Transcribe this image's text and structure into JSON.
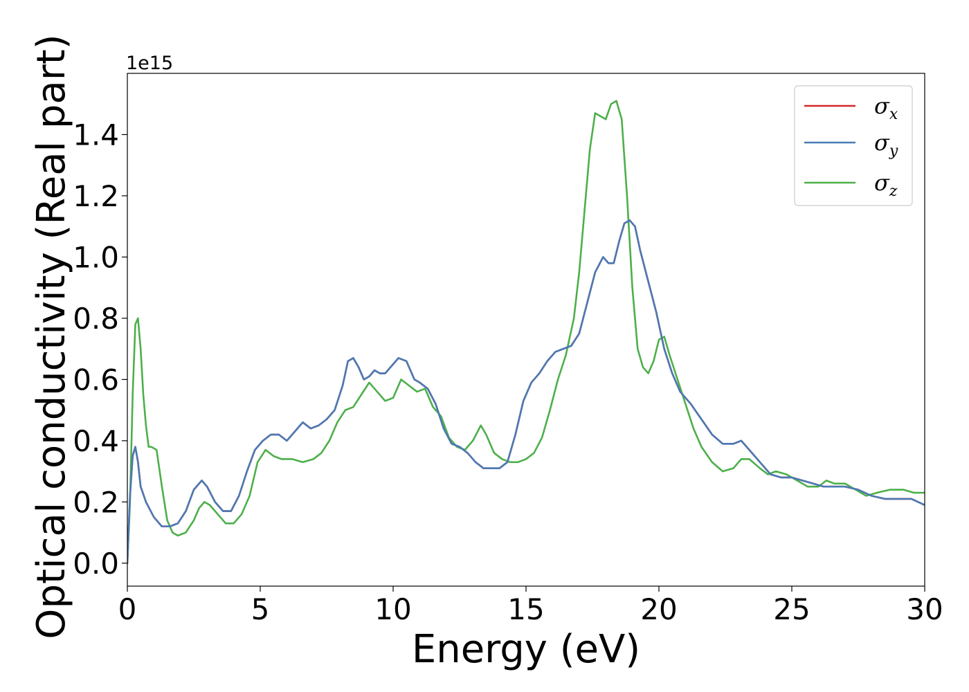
{
  "chart_data": {
    "type": "line",
    "title": "",
    "xlabel": "Energy (eV)",
    "ylabel": "Optical conductivity (Real part)",
    "y_offset_label": "1e15",
    "xlim": [
      0,
      30
    ],
    "ylim": [
      -0.075,
      1.6
    ],
    "xticks": [
      0,
      5,
      10,
      15,
      20,
      25,
      30
    ],
    "xtick_labels": [
      "0",
      "5",
      "10",
      "15",
      "20",
      "25",
      "30"
    ],
    "yticks": [
      0.0,
      0.2,
      0.4,
      0.6,
      0.8,
      1.0,
      1.2,
      1.4
    ],
    "ytick_labels": [
      "0.0",
      "0.2",
      "0.4",
      "0.6",
      "0.8",
      "1.0",
      "1.2",
      "1.4"
    ],
    "grid": false,
    "legend_position": "top-right",
    "series": [
      {
        "name": "σx",
        "sym": "σ",
        "sub": "x",
        "color": "#d62728",
        "x": [
          0,
          0.1,
          0.2,
          0.3,
          0.4,
          0.5,
          0.7,
          1.0,
          1.3,
          1.6,
          1.9,
          2.2,
          2.5,
          2.8,
          3.0,
          3.3,
          3.6,
          3.9,
          4.2,
          4.5,
          4.8,
          5.1,
          5.4,
          5.7,
          6.0,
          6.3,
          6.6,
          6.9,
          7.2,
          7.5,
          7.8,
          8.1,
          8.3,
          8.5,
          8.7,
          8.9,
          9.1,
          9.3,
          9.5,
          9.7,
          10.0,
          10.2,
          10.5,
          10.8,
          11.0,
          11.3,
          11.6,
          11.9,
          12.2,
          12.5,
          12.8,
          13.1,
          13.4,
          13.7,
          14.0,
          14.3,
          14.6,
          14.9,
          15.2,
          15.5,
          15.8,
          16.1,
          16.4,
          16.7,
          17.0,
          17.3,
          17.6,
          17.9,
          18.1,
          18.3,
          18.5,
          18.7,
          18.9,
          19.1,
          19.3,
          19.6,
          19.9,
          20.2,
          20.5,
          20.8,
          21.2,
          21.6,
          22.0,
          22.4,
          22.8,
          23.1,
          23.4,
          23.8,
          24.2,
          24.6,
          25.0,
          25.4,
          25.8,
          26.2,
          26.6,
          27.0,
          27.5,
          28.0,
          28.5,
          29.0,
          29.5,
          30.0
        ],
        "y": [
          0.0,
          0.22,
          0.35,
          0.38,
          0.33,
          0.25,
          0.2,
          0.15,
          0.12,
          0.12,
          0.13,
          0.17,
          0.24,
          0.27,
          0.25,
          0.2,
          0.17,
          0.17,
          0.22,
          0.3,
          0.37,
          0.4,
          0.42,
          0.42,
          0.4,
          0.43,
          0.46,
          0.44,
          0.45,
          0.47,
          0.5,
          0.58,
          0.66,
          0.67,
          0.64,
          0.6,
          0.61,
          0.63,
          0.62,
          0.62,
          0.65,
          0.67,
          0.66,
          0.6,
          0.59,
          0.57,
          0.52,
          0.44,
          0.39,
          0.38,
          0.36,
          0.33,
          0.31,
          0.31,
          0.31,
          0.33,
          0.42,
          0.53,
          0.59,
          0.62,
          0.66,
          0.69,
          0.7,
          0.71,
          0.75,
          0.85,
          0.95,
          1.0,
          0.98,
          0.98,
          1.05,
          1.11,
          1.12,
          1.1,
          1.02,
          0.92,
          0.82,
          0.7,
          0.62,
          0.56,
          0.52,
          0.47,
          0.42,
          0.39,
          0.39,
          0.4,
          0.37,
          0.33,
          0.29,
          0.28,
          0.28,
          0.27,
          0.26,
          0.25,
          0.25,
          0.25,
          0.24,
          0.22,
          0.21,
          0.21,
          0.21,
          0.19
        ]
      },
      {
        "name": "σy",
        "sym": "σ",
        "sub": "y",
        "color": "#4a7ab5",
        "x": [
          0,
          0.1,
          0.2,
          0.3,
          0.4,
          0.5,
          0.7,
          1.0,
          1.3,
          1.6,
          1.9,
          2.2,
          2.5,
          2.8,
          3.0,
          3.3,
          3.6,
          3.9,
          4.2,
          4.5,
          4.8,
          5.1,
          5.4,
          5.7,
          6.0,
          6.3,
          6.6,
          6.9,
          7.2,
          7.5,
          7.8,
          8.1,
          8.3,
          8.5,
          8.7,
          8.9,
          9.1,
          9.3,
          9.5,
          9.7,
          10.0,
          10.2,
          10.5,
          10.8,
          11.0,
          11.3,
          11.6,
          11.9,
          12.2,
          12.5,
          12.8,
          13.1,
          13.4,
          13.7,
          14.0,
          14.3,
          14.6,
          14.9,
          15.2,
          15.5,
          15.8,
          16.1,
          16.4,
          16.7,
          17.0,
          17.3,
          17.6,
          17.9,
          18.1,
          18.3,
          18.5,
          18.7,
          18.9,
          19.1,
          19.3,
          19.6,
          19.9,
          20.2,
          20.5,
          20.8,
          21.2,
          21.6,
          22.0,
          22.4,
          22.8,
          23.1,
          23.4,
          23.8,
          24.2,
          24.6,
          25.0,
          25.4,
          25.8,
          26.2,
          26.6,
          27.0,
          27.5,
          28.0,
          28.5,
          29.0,
          29.5,
          30.0
        ],
        "y": [
          0.0,
          0.22,
          0.35,
          0.38,
          0.33,
          0.25,
          0.2,
          0.15,
          0.12,
          0.12,
          0.13,
          0.17,
          0.24,
          0.27,
          0.25,
          0.2,
          0.17,
          0.17,
          0.22,
          0.3,
          0.37,
          0.4,
          0.42,
          0.42,
          0.4,
          0.43,
          0.46,
          0.44,
          0.45,
          0.47,
          0.5,
          0.58,
          0.66,
          0.67,
          0.64,
          0.6,
          0.61,
          0.63,
          0.62,
          0.62,
          0.65,
          0.67,
          0.66,
          0.6,
          0.59,
          0.57,
          0.52,
          0.44,
          0.39,
          0.38,
          0.36,
          0.33,
          0.31,
          0.31,
          0.31,
          0.33,
          0.42,
          0.53,
          0.59,
          0.62,
          0.66,
          0.69,
          0.7,
          0.71,
          0.75,
          0.85,
          0.95,
          1.0,
          0.98,
          0.98,
          1.05,
          1.11,
          1.12,
          1.1,
          1.02,
          0.92,
          0.82,
          0.7,
          0.62,
          0.56,
          0.52,
          0.47,
          0.42,
          0.39,
          0.39,
          0.4,
          0.37,
          0.33,
          0.29,
          0.28,
          0.28,
          0.27,
          0.26,
          0.25,
          0.25,
          0.25,
          0.24,
          0.22,
          0.21,
          0.21,
          0.21,
          0.19
        ]
      },
      {
        "name": "σz",
        "sym": "σ",
        "sub": "z",
        "color": "#4daf4a",
        "x": [
          0,
          0.1,
          0.2,
          0.3,
          0.4,
          0.5,
          0.6,
          0.7,
          0.8,
          0.9,
          1.1,
          1.3,
          1.5,
          1.7,
          1.9,
          2.2,
          2.5,
          2.7,
          2.9,
          3.1,
          3.4,
          3.7,
          4.0,
          4.3,
          4.6,
          4.9,
          5.2,
          5.5,
          5.8,
          6.2,
          6.6,
          7.0,
          7.3,
          7.6,
          7.9,
          8.2,
          8.5,
          8.8,
          9.1,
          9.4,
          9.7,
          10.0,
          10.3,
          10.6,
          10.9,
          11.2,
          11.5,
          11.8,
          12.1,
          12.4,
          12.7,
          13.0,
          13.3,
          13.5,
          13.8,
          14.1,
          14.4,
          14.7,
          15.0,
          15.3,
          15.6,
          15.9,
          16.2,
          16.5,
          16.8,
          17.0,
          17.2,
          17.4,
          17.6,
          17.8,
          18.0,
          18.2,
          18.4,
          18.6,
          18.8,
          19.0,
          19.2,
          19.4,
          19.6,
          19.8,
          20.0,
          20.2,
          20.4,
          20.7,
          21.0,
          21.3,
          21.6,
          22.0,
          22.4,
          22.8,
          23.1,
          23.4,
          23.8,
          24.1,
          24.4,
          24.8,
          25.2,
          25.6,
          26.0,
          26.3,
          26.6,
          27.0,
          27.4,
          27.8,
          28.2,
          28.7,
          29.2,
          29.6,
          30.0
        ],
        "y": [
          0.0,
          0.2,
          0.55,
          0.78,
          0.8,
          0.7,
          0.55,
          0.45,
          0.38,
          0.38,
          0.37,
          0.25,
          0.14,
          0.1,
          0.09,
          0.1,
          0.14,
          0.18,
          0.2,
          0.19,
          0.16,
          0.13,
          0.13,
          0.16,
          0.22,
          0.33,
          0.37,
          0.35,
          0.34,
          0.34,
          0.33,
          0.34,
          0.36,
          0.4,
          0.46,
          0.5,
          0.51,
          0.55,
          0.59,
          0.56,
          0.53,
          0.54,
          0.6,
          0.58,
          0.56,
          0.57,
          0.51,
          0.48,
          0.41,
          0.38,
          0.37,
          0.4,
          0.45,
          0.42,
          0.36,
          0.34,
          0.33,
          0.33,
          0.34,
          0.36,
          0.41,
          0.5,
          0.6,
          0.68,
          0.8,
          0.95,
          1.15,
          1.35,
          1.47,
          1.46,
          1.45,
          1.5,
          1.51,
          1.45,
          1.2,
          0.9,
          0.7,
          0.64,
          0.62,
          0.66,
          0.73,
          0.74,
          0.68,
          0.6,
          0.52,
          0.44,
          0.38,
          0.33,
          0.3,
          0.31,
          0.34,
          0.34,
          0.31,
          0.29,
          0.3,
          0.29,
          0.27,
          0.25,
          0.25,
          0.27,
          0.26,
          0.26,
          0.24,
          0.22,
          0.23,
          0.24,
          0.24,
          0.23,
          0.23
        ]
      }
    ]
  }
}
